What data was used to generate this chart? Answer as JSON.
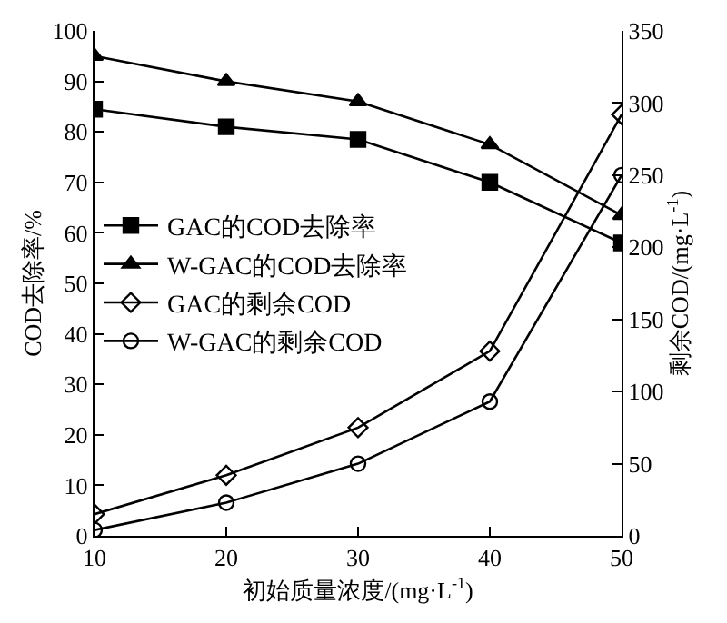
{
  "chart_data": {
    "type": "line",
    "xlabel": "初始质量浓度/(mg·L$^{-1}$)",
    "ylabel": "COD去除率/%",
    "y2label": "剩余COD/(mg·L$^{-1}$)",
    "x": [
      10,
      20,
      30,
      40,
      50
    ],
    "series": [
      {
        "name": "GAC的COD去除率",
        "color": "#000000",
        "marker": "square",
        "values": [
          84.5,
          81,
          78.5,
          70,
          58
        ]
      },
      {
        "name": "W-GAC的COD去除率",
        "color": "#000000",
        "marker": "triangle",
        "values": [
          95,
          90,
          86,
          77.5,
          63.5
        ]
      },
      {
        "name": "GAC的剩余COD",
        "color": "#000000",
        "marker": "diamond",
        "axis": "y2",
        "values": [
          15,
          42,
          75,
          128,
          292
        ]
      },
      {
        "name": "W-GAC的剩余COD",
        "color": "#000000",
        "marker": "circle",
        "axis": "y2",
        "values": [
          4,
          23,
          50,
          93,
          250
        ]
      }
    ],
    "xlim": [
      10,
      50
    ],
    "xticks": [
      10,
      20,
      30,
      40,
      50
    ],
    "ylim": [
      0,
      100
    ],
    "yticks": [
      0,
      10,
      20,
      30,
      40,
      50,
      60,
      70,
      80,
      90,
      100
    ],
    "y2lim": [
      0,
      350
    ],
    "y2ticks": [
      0,
      50,
      100,
      150,
      200,
      250,
      300,
      350
    ],
    "legend": "left",
    "line_style": "solid"
  }
}
